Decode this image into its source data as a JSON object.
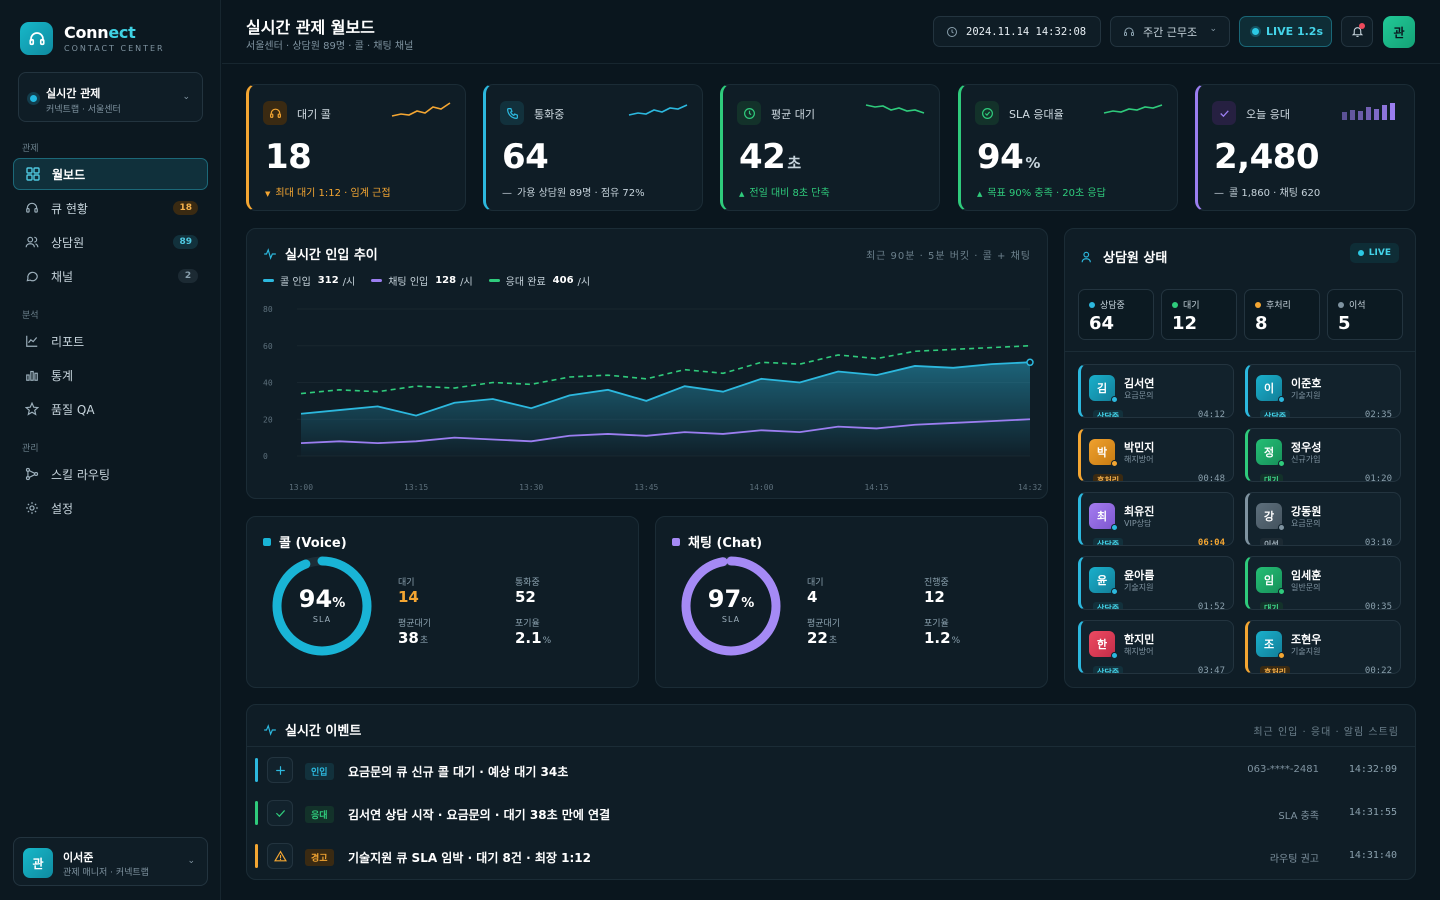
{
  "app": {
    "name_main": "Conn",
    "name_accent": "ect",
    "subtitle": "CONTACT CENTER"
  },
  "workspace": {
    "title": "실시간 관제",
    "subtitle": "커넥트랩 · 서울센터"
  },
  "sidebar": {
    "sections": [
      "관제",
      "분석",
      "관리"
    ],
    "items": [
      {
        "label": "월보드",
        "icon": "grid-icon",
        "active": true
      },
      {
        "label": "큐 현황",
        "icon": "headset-icon",
        "badge": "18"
      },
      {
        "label": "상담원",
        "icon": "users-icon",
        "badge": "89"
      },
      {
        "label": "채널",
        "icon": "chat-icon",
        "badge": "2"
      },
      {
        "label": "리포트",
        "icon": "line-chart-icon"
      },
      {
        "label": "통계",
        "icon": "bar-chart-icon"
      },
      {
        "label": "품질 QA",
        "icon": "star-icon"
      },
      {
        "label": "스킬 라우팅",
        "icon": "routing-icon"
      },
      {
        "label": "설정",
        "icon": "gear-icon"
      }
    ]
  },
  "user": {
    "avatar": "관",
    "name": "이서준",
    "role": "관제 매니저 · 커넥트랩"
  },
  "topbar": {
    "title": "실시간 관제 월보드",
    "subtitle": "서울센터 · 상담원 89명 · 콜 · 채팅 채널",
    "datetime": "2024.11.14 14:32:08",
    "shift": "주간 근무조",
    "live": "LIVE 1.2s",
    "avatar": "관"
  },
  "kpis": [
    {
      "label": "대기 콜",
      "value": "18",
      "unit": "",
      "note": "최대 대기 1:12 · 임계 근접",
      "note_icon": "▼",
      "color": "#f4a632"
    },
    {
      "label": "통화중",
      "value": "64",
      "unit": "",
      "note": "가용 상담원 89명 · 점유 72%",
      "note_icon": "—",
      "color": "#2cb8de"
    },
    {
      "label": "평균 대기",
      "value": "42",
      "unit": "초",
      "note": "전일 대비 8초 단축",
      "note_icon": "▲",
      "color": "#2fcb7c"
    },
    {
      "label": "SLA 응대율",
      "value": "94",
      "unit": "%",
      "note": "목표 90% 충족 · 20초 응답",
      "note_icon": "▲",
      "color": "#2fcb7c"
    },
    {
      "label": "오늘 응대",
      "value": "2,480",
      "unit": "",
      "note": "콜 1,860 · 채팅 620",
      "note_icon": "—",
      "color": "#9b7ef0"
    }
  ],
  "trend": {
    "title": "실시간 인입 추이",
    "meta": "최근 90분 · 5분 버킷 · 콜 + 채팅",
    "legend": [
      {
        "label": "콜 인입",
        "value": "312",
        "unit": "/시",
        "color": "#2cb8de"
      },
      {
        "label": "채팅 인입",
        "value": "128",
        "unit": "/시",
        "color": "#9b7ef0"
      },
      {
        "label": "응대 완료",
        "value": "406",
        "unit": "/시",
        "color": "#2fcb7c"
      }
    ]
  },
  "chart_data": {
    "type": "line",
    "x": [
      "13:00",
      "13:05",
      "13:10",
      "13:15",
      "13:20",
      "13:25",
      "13:30",
      "13:35",
      "13:40",
      "13:45",
      "13:50",
      "13:55",
      "14:00",
      "14:05",
      "14:10",
      "14:15",
      "14:20",
      "14:25",
      "14:30",
      "14:32"
    ],
    "xticks": [
      "13:00",
      "13:15",
      "13:30",
      "13:45",
      "14:00",
      "14:15",
      "14:32"
    ],
    "yticks": [
      "80",
      "60",
      "40",
      "20",
      "0"
    ],
    "ylim": [
      0,
      80
    ],
    "series": [
      {
        "name": "콜 인입",
        "color": "#2cb8de",
        "values": [
          23,
          25,
          27,
          22,
          29,
          31,
          26,
          33,
          36,
          30,
          38,
          35,
          42,
          40,
          46,
          44,
          49,
          48,
          50,
          51
        ]
      },
      {
        "name": "채팅 인입",
        "color": "#9b7ef0",
        "values": [
          7,
          8,
          7,
          8,
          10,
          9,
          8,
          11,
          12,
          11,
          13,
          12,
          14,
          13,
          16,
          15,
          17,
          18,
          19,
          20
        ]
      },
      {
        "name": "응대 완료",
        "color": "#2fcb7c",
        "values": [
          34,
          36,
          35,
          38,
          37,
          40,
          39,
          43,
          44,
          42,
          47,
          45,
          51,
          50,
          55,
          53,
          57,
          58,
          59,
          60
        ]
      }
    ]
  },
  "agents_panel": {
    "title": "상담원 상태",
    "live": "LIVE",
    "stats": [
      {
        "label": "상담중",
        "value": "64",
        "color": "#2cb8de"
      },
      {
        "label": "대기",
        "value": "12",
        "color": "#2fcb7c"
      },
      {
        "label": "후처리",
        "value": "8",
        "color": "#f4a632"
      },
      {
        "label": "이석",
        "value": "5",
        "color": "#7f93a0"
      }
    ],
    "agents": [
      {
        "avatar": "김",
        "name": "김서연",
        "role": "요금문의",
        "status": "상담중",
        "time": "04:12",
        "kind": "talk"
      },
      {
        "avatar": "이",
        "name": "이준호",
        "role": "기술지원",
        "status": "상담중",
        "time": "02:35",
        "kind": "talk"
      },
      {
        "avatar": "박",
        "name": "박민지",
        "role": "해지방어",
        "status": "후처리",
        "time": "00:48",
        "kind": "acw"
      },
      {
        "avatar": "정",
        "name": "정우성",
        "role": "신규가입",
        "status": "대기",
        "time": "01:20",
        "kind": "idle"
      },
      {
        "avatar": "최",
        "name": "최유진",
        "role": "VIP상담",
        "status": "상담중",
        "time": "06:04",
        "kind": "talk",
        "alert": true
      },
      {
        "avatar": "강",
        "name": "강동원",
        "role": "요금문의",
        "status": "이석",
        "time": "03:10",
        "kind": "away"
      },
      {
        "avatar": "윤",
        "name": "윤아름",
        "role": "기술지원",
        "status": "상담중",
        "time": "01:52",
        "kind": "talk"
      },
      {
        "avatar": "임",
        "name": "임세훈",
        "role": "일반문의",
        "status": "대기",
        "time": "00:35",
        "kind": "idle"
      },
      {
        "avatar": "한",
        "name": "한지민",
        "role": "해지방어",
        "status": "상담중",
        "time": "03:47",
        "kind": "talk"
      },
      {
        "avatar": "조",
        "name": "조현우",
        "role": "기술지원",
        "status": "후처리",
        "time": "00:22",
        "kind": "acw"
      }
    ]
  },
  "channels": [
    {
      "title": "콜 (Voice)",
      "sla": 94,
      "sla_label": "SLA",
      "color": "#19b4d6",
      "m": [
        {
          "label": "대기",
          "value": "14",
          "unit": "",
          "accent": "#f4a632"
        },
        {
          "label": "통화중",
          "value": "52",
          "unit": ""
        },
        {
          "label": "평균대기",
          "value": "38",
          "unit": "초"
        },
        {
          "label": "포기율",
          "value": "2.1",
          "unit": "%"
        }
      ]
    },
    {
      "title": "채팅 (Chat)",
      "sla": 97,
      "sla_label": "SLA",
      "color": "#a58af5",
      "m": [
        {
          "label": "대기",
          "value": "4",
          "unit": ""
        },
        {
          "label": "진행중",
          "value": "12",
          "unit": ""
        },
        {
          "label": "평균대기",
          "value": "22",
          "unit": "초"
        },
        {
          "label": "포기율",
          "value": "1.2",
          "unit": "%"
        }
      ]
    }
  ],
  "events": {
    "title": "실시간 이벤트",
    "meta": "최근 인입 · 응대 · 알림 스트림",
    "rows": [
      {
        "tag": "인입",
        "text": "요금문의 큐 신규 콜 대기 · 예상 대기 34초",
        "meta": "063-****-2481",
        "time": "14:32:09",
        "color": "#2cb8de",
        "icon": "plus-icon"
      },
      {
        "tag": "응대",
        "text": "김서연 상담 시작 · 요금문의 · 대기 38초 만에 연결",
        "meta": "SLA 충족",
        "time": "14:31:55",
        "color": "#2fcb7c",
        "icon": "check-icon"
      },
      {
        "tag": "경고",
        "text": "기술지원 큐 SLA 임박 · 대기 8건 · 최장 1:12",
        "meta": "라우팅 권고",
        "time": "14:31:40",
        "color": "#f4a632",
        "icon": "warning-icon"
      }
    ]
  }
}
